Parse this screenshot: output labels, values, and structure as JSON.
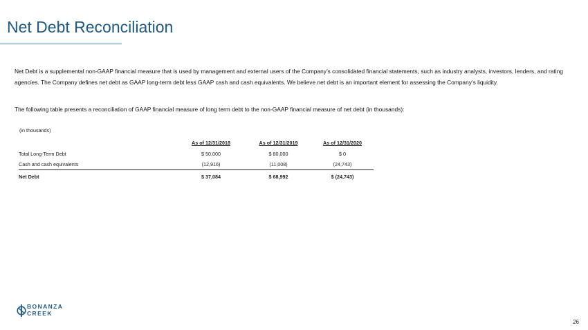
{
  "slide": {
    "title": "Net Debt Reconciliation",
    "paragraph1": "Net Debt is a supplemental non-GAAP financial measure that is used by management and external users of the Company’s consolidated financial statements, such as industry analysts, investors, lenders, and rating agencies. The Company defines net debt as GAAP long-term debt less GAAP cash and cash equivalents. We believe net debt is an important element for assessing the Company’s liquidity.",
    "paragraph2": "The following table presents a reconciliation of GAAP financial measure of long term debt to the non-GAAP financial measure of net debt (in thousands):",
    "page_number": "26"
  },
  "table": {
    "units": "(in thousands)",
    "headers": [
      "",
      "As of 12/31/2018",
      "As of 12/31/2019",
      "As of 12/31/2020"
    ],
    "rows": [
      {
        "label": "Total Long-Term Debt",
        "values": [
          "$ 50,000",
          "$ 80,000",
          "$ 0"
        ]
      },
      {
        "label": "Cash and cash equivalents",
        "values": [
          "(12,916)",
          "(11,008)",
          "(24,743)"
        ]
      },
      {
        "label": "Net Debt",
        "values": [
          "$ 37,084",
          "$ 68,992",
          "$ (24,743)"
        ]
      }
    ]
  },
  "logo": {
    "line1": "BONANZA",
    "line2": "CREEK",
    "color": "#1f5a85"
  },
  "colors": {
    "title": "#1f5a85",
    "rule": "#4b89b5"
  }
}
